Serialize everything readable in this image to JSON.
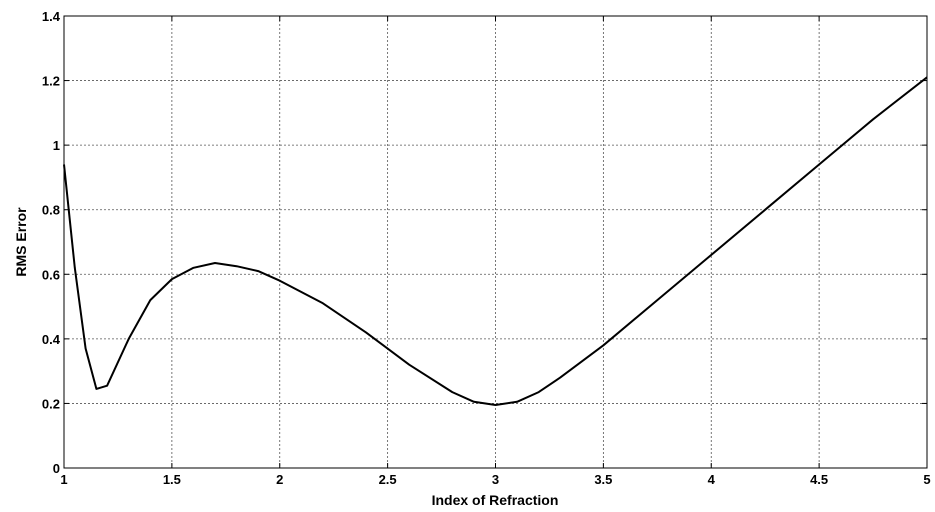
{
  "chart_data": {
    "type": "line",
    "title": "",
    "xlabel": "Index of Refraction",
    "ylabel": "RMS Error",
    "xlim": [
      1,
      5
    ],
    "ylim": [
      0,
      1.4
    ],
    "grid": true,
    "x_ticks": [
      "1",
      "1.5",
      "2",
      "2.5",
      "3",
      "3.5",
      "4",
      "4.5",
      "5"
    ],
    "y_ticks": [
      "0",
      "0.2",
      "0.4",
      "0.6",
      "0.8",
      "1",
      "1.2",
      "1.4"
    ],
    "series": [
      {
        "color": "#000000",
        "x": [
          1.0,
          1.05,
          1.1,
          1.15,
          1.2,
          1.3,
          1.4,
          1.5,
          1.6,
          1.7,
          1.8,
          1.9,
          2.0,
          2.2,
          2.4,
          2.6,
          2.8,
          2.9,
          3.0,
          3.1,
          3.2,
          3.3,
          3.5,
          3.75,
          4.0,
          4.25,
          4.5,
          4.75,
          5.0
        ],
        "y": [
          0.94,
          0.62,
          0.37,
          0.245,
          0.255,
          0.4,
          0.52,
          0.585,
          0.62,
          0.635,
          0.625,
          0.61,
          0.58,
          0.51,
          0.42,
          0.32,
          0.235,
          0.205,
          0.195,
          0.205,
          0.235,
          0.28,
          0.38,
          0.52,
          0.66,
          0.8,
          0.94,
          1.08,
          1.21
        ]
      }
    ]
  }
}
